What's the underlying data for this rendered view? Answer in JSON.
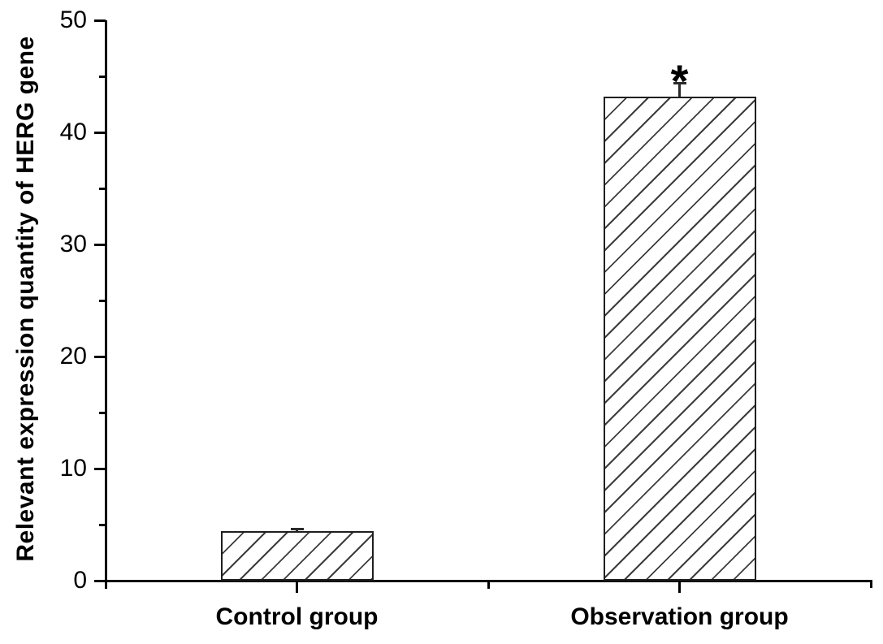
{
  "figure": {
    "background_color": "#ffffff",
    "axis_color": "#000000",
    "bar_border_color": "#1f1f1f",
    "hatch_color": "#3d3d3d",
    "bar_fill_color": "#ffffff",
    "text_color": "#000000"
  },
  "chart_data": {
    "type": "bar",
    "categories": [
      "Control group",
      "Observation group"
    ],
    "values": [
      4.4,
      43.2
    ],
    "errors": [
      0.25,
      1.2
    ],
    "significance": [
      "",
      "*"
    ],
    "title": "",
    "xlabel": "",
    "ylabel": "Relevant expression quantity of HERG gene",
    "ylim": [
      0,
      50
    ],
    "yticks": [
      0,
      10,
      20,
      30,
      40,
      50
    ],
    "ytick_labels": [
      "0",
      "10",
      "20",
      "30",
      "40",
      "50"
    ],
    "minor_ytick_step": 5,
    "bar_pattern": "diagonal-hatch",
    "grid": false,
    "legend_position": "none"
  }
}
